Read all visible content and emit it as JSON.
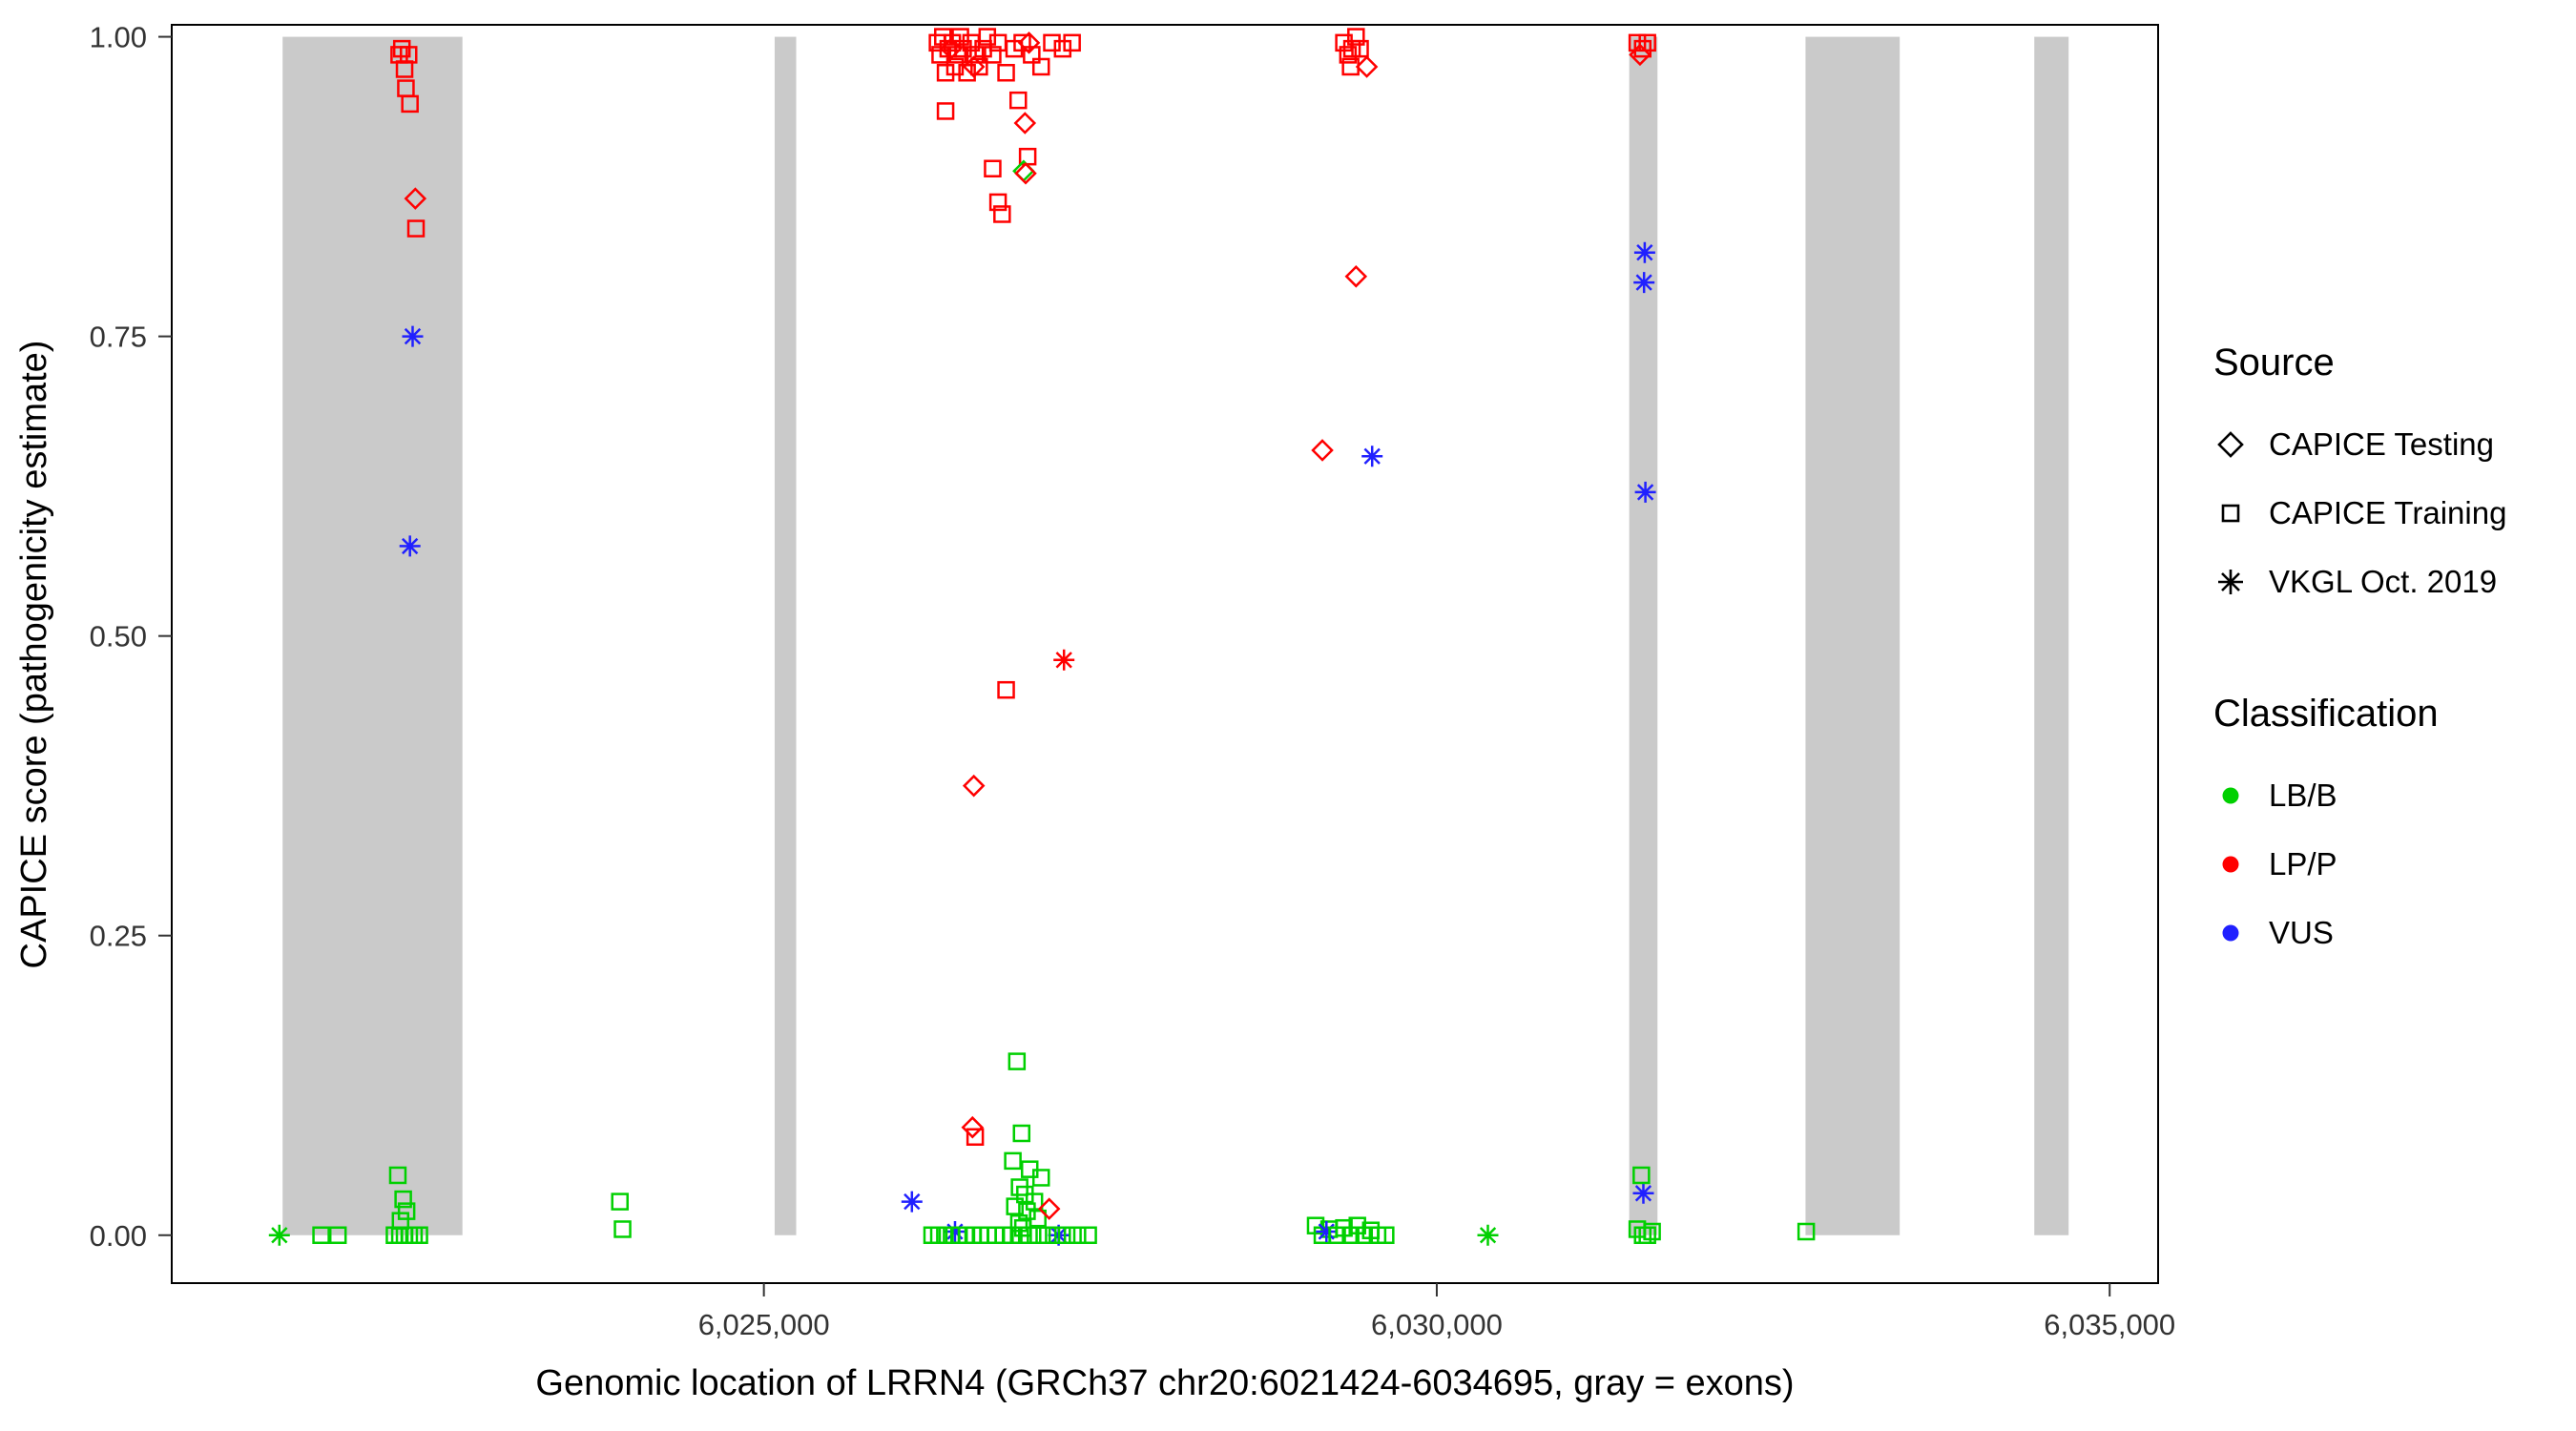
{
  "figure": {
    "xlabel": "Genomic location of LRRN4 (GRCh37 chr20:6021424-6034695, gray = exons)",
    "ylabel": "CAPICE score (pathogenicity estimate)"
  },
  "legend": {
    "source_title": "Source",
    "source_items": [
      {
        "label": "CAPICE Testing",
        "shape": "diamond"
      },
      {
        "label": "CAPICE Training",
        "shape": "square"
      },
      {
        "label": "VKGL Oct. 2019",
        "shape": "asterisk"
      }
    ],
    "classification_title": "Classification",
    "classification_items": [
      {
        "label": "LB/B",
        "color": "#00D000"
      },
      {
        "label": "LP/P",
        "color": "#FF0000"
      },
      {
        "label": "VUS",
        "color": "#2020FF"
      }
    ]
  },
  "chart_data": {
    "type": "scatter",
    "title": "",
    "xlabel": "Genomic location of LRRN4 (GRCh37 chr20:6021424-6034695, gray = exons)",
    "ylabel": "CAPICE score (pathogenicity estimate)",
    "xlim": [
      6020600,
      6035360
    ],
    "ylim": [
      -0.04,
      1.01
    ],
    "grid": false,
    "legend_position": "right",
    "exon_color": "#CACACA",
    "x_ticks": [
      {
        "value": 6025000,
        "label": "6,025,000"
      },
      {
        "value": 6030000,
        "label": "6,030,000"
      },
      {
        "value": 6035000,
        "label": "6,035,000"
      }
    ],
    "y_ticks": [
      {
        "value": 0.0,
        "label": "0.00"
      },
      {
        "value": 0.25,
        "label": "0.25"
      },
      {
        "value": 0.5,
        "label": "0.50"
      },
      {
        "value": 0.75,
        "label": "0.75"
      },
      {
        "value": 1.0,
        "label": "1.00"
      }
    ],
    "exons": [
      [
        6021424,
        6022760
      ],
      [
        6025080,
        6025240
      ],
      [
        6031430,
        6031640
      ],
      [
        6032740,
        6033440
      ],
      [
        6034440,
        6034695
      ]
    ],
    "class_colors": {
      "LB/B": "#00D000",
      "LP/P": "#FF0000",
      "VUS": "#2020FF"
    },
    "shape_by_source": {
      "testing": "diamond",
      "training": "square",
      "vkgl": "asterisk"
    },
    "points": [
      {
        "x": 6021400,
        "y": 0,
        "src": "vkgl",
        "cls": "LB/B"
      },
      {
        "x": 6021710,
        "y": 0,
        "src": "training",
        "cls": "LB/B"
      },
      {
        "x": 6021835,
        "y": 0,
        "src": "training",
        "cls": "LB/B"
      },
      {
        "x": 6022290,
        "y": 0.985,
        "src": "training",
        "cls": "LP/P"
      },
      {
        "x": 6022310,
        "y": 0.99,
        "src": "training",
        "cls": "LP/P"
      },
      {
        "x": 6022360,
        "y": 0.985,
        "src": "training",
        "cls": "LP/P"
      },
      {
        "x": 6022330,
        "y": 0.973,
        "src": "training",
        "cls": "LP/P"
      },
      {
        "x": 6022340,
        "y": 0.957,
        "src": "training",
        "cls": "LP/P"
      },
      {
        "x": 6022370,
        "y": 0.944,
        "src": "training",
        "cls": "LP/P"
      },
      {
        "x": 6022410,
        "y": 0.865,
        "src": "testing",
        "cls": "LP/P"
      },
      {
        "x": 6022415,
        "y": 0.84,
        "src": "training",
        "cls": "LP/P"
      },
      {
        "x": 6022390,
        "y": 0.75,
        "src": "vkgl",
        "cls": "VUS"
      },
      {
        "x": 6022370,
        "y": 0.575,
        "src": "vkgl",
        "cls": "VUS"
      },
      {
        "x": 6022280,
        "y": 0.05,
        "src": "training",
        "cls": "LB/B"
      },
      {
        "x": 6022320,
        "y": 0.03,
        "src": "training",
        "cls": "LB/B"
      },
      {
        "x": 6022345,
        "y": 0.02,
        "src": "training",
        "cls": "LB/B"
      },
      {
        "x": 6022300,
        "y": 0.012,
        "src": "training",
        "cls": "LB/B"
      },
      {
        "x": 6022255,
        "y": 0,
        "src": "training",
        "cls": "LB/B"
      },
      {
        "x": 6022295,
        "y": 0,
        "src": "training",
        "cls": "LB/B"
      },
      {
        "x": 6022330,
        "y": 0,
        "src": "training",
        "cls": "LB/B"
      },
      {
        "x": 6022365,
        "y": 0,
        "src": "training",
        "cls": "LB/B"
      },
      {
        "x": 6022400,
        "y": 0,
        "src": "training",
        "cls": "LB/B"
      },
      {
        "x": 6022440,
        "y": 0,
        "src": "training",
        "cls": "LB/B"
      },
      {
        "x": 6023930,
        "y": 0.028,
        "src": "training",
        "cls": "LB/B"
      },
      {
        "x": 6023950,
        "y": 0.005,
        "src": "training",
        "cls": "LB/B"
      },
      {
        "x": 6026100,
        "y": 0.028,
        "src": "vkgl",
        "cls": "VUS"
      },
      {
        "x": 6026290,
        "y": 0.995,
        "src": "training",
        "cls": "LP/P"
      },
      {
        "x": 6026310,
        "y": 0.985,
        "src": "training",
        "cls": "LP/P"
      },
      {
        "x": 6026330,
        "y": 1.0,
        "src": "training",
        "cls": "LP/P"
      },
      {
        "x": 6026350,
        "y": 0.97,
        "src": "training",
        "cls": "LP/P"
      },
      {
        "x": 6026370,
        "y": 0.99,
        "src": "training",
        "cls": "LP/P"
      },
      {
        "x": 6026400,
        "y": 0.995,
        "src": "training",
        "cls": "LP/P"
      },
      {
        "x": 6026420,
        "y": 0.975,
        "src": "training",
        "cls": "LP/P"
      },
      {
        "x": 6026440,
        "y": 0.985,
        "src": "training",
        "cls": "LP/P"
      },
      {
        "x": 6026460,
        "y": 1.0,
        "src": "training",
        "cls": "LP/P"
      },
      {
        "x": 6026480,
        "y": 0.99,
        "src": "training",
        "cls": "LP/P"
      },
      {
        "x": 6026510,
        "y": 0.97,
        "src": "training",
        "cls": "LP/P"
      },
      {
        "x": 6026540,
        "y": 0.995,
        "src": "training",
        "cls": "LP/P"
      },
      {
        "x": 6026570,
        "y": 0.985,
        "src": "training",
        "cls": "LP/P"
      },
      {
        "x": 6026600,
        "y": 0.975,
        "src": "training",
        "cls": "LP/P"
      },
      {
        "x": 6026630,
        "y": 0.99,
        "src": "training",
        "cls": "LP/P"
      },
      {
        "x": 6026660,
        "y": 1.0,
        "src": "training",
        "cls": "LP/P"
      },
      {
        "x": 6026700,
        "y": 0.985,
        "src": "training",
        "cls": "LP/P"
      },
      {
        "x": 6026740,
        "y": 0.995,
        "src": "training",
        "cls": "LP/P"
      },
      {
        "x": 6026800,
        "y": 0.97,
        "src": "training",
        "cls": "LP/P"
      },
      {
        "x": 6026860,
        "y": 0.99,
        "src": "training",
        "cls": "LP/P"
      },
      {
        "x": 6026920,
        "y": 0.995,
        "src": "training",
        "cls": "LP/P"
      },
      {
        "x": 6026990,
        "y": 0.985,
        "src": "training",
        "cls": "LP/P"
      },
      {
        "x": 6027060,
        "y": 0.975,
        "src": "training",
        "cls": "LP/P"
      },
      {
        "x": 6027140,
        "y": 0.995,
        "src": "training",
        "cls": "LP/P"
      },
      {
        "x": 6027220,
        "y": 0.99,
        "src": "training",
        "cls": "LP/P"
      },
      {
        "x": 6027290,
        "y": 0.995,
        "src": "training",
        "cls": "LP/P"
      },
      {
        "x": 6026390,
        "y": 0.99,
        "src": "testing",
        "cls": "LP/P"
      },
      {
        "x": 6026560,
        "y": 0.975,
        "src": "testing",
        "cls": "LP/P"
      },
      {
        "x": 6026970,
        "y": 0.995,
        "src": "testing",
        "cls": "LP/P"
      },
      {
        "x": 6026350,
        "y": 0.938,
        "src": "training",
        "cls": "LP/P"
      },
      {
        "x": 6026890,
        "y": 0.947,
        "src": "training",
        "cls": "LP/P"
      },
      {
        "x": 6026940,
        "y": 0.928,
        "src": "testing",
        "cls": "LP/P"
      },
      {
        "x": 6026960,
        "y": 0.9,
        "src": "training",
        "cls": "LP/P"
      },
      {
        "x": 6026700,
        "y": 0.89,
        "src": "training",
        "cls": "LP/P"
      },
      {
        "x": 6026930,
        "y": 0.888,
        "src": "testing",
        "cls": "LB/B"
      },
      {
        "x": 6026945,
        "y": 0.886,
        "src": "testing",
        "cls": "LP/P"
      },
      {
        "x": 6026740,
        "y": 0.862,
        "src": "training",
        "cls": "LP/P"
      },
      {
        "x": 6026770,
        "y": 0.852,
        "src": "training",
        "cls": "LP/P"
      },
      {
        "x": 6026800,
        "y": 0.455,
        "src": "training",
        "cls": "LP/P"
      },
      {
        "x": 6027230,
        "y": 0.48,
        "src": "vkgl",
        "cls": "LP/P"
      },
      {
        "x": 6026560,
        "y": 0.375,
        "src": "testing",
        "cls": "LP/P"
      },
      {
        "x": 6026550,
        "y": 0.09,
        "src": "testing",
        "cls": "LP/P"
      },
      {
        "x": 6026570,
        "y": 0.082,
        "src": "training",
        "cls": "LP/P"
      },
      {
        "x": 6026880,
        "y": 0.145,
        "src": "training",
        "cls": "LB/B"
      },
      {
        "x": 6026915,
        "y": 0.085,
        "src": "training",
        "cls": "LB/B"
      },
      {
        "x": 6026850,
        "y": 0.062,
        "src": "training",
        "cls": "LB/B"
      },
      {
        "x": 6026975,
        "y": 0.055,
        "src": "training",
        "cls": "LB/B"
      },
      {
        "x": 6027060,
        "y": 0.048,
        "src": "training",
        "cls": "LB/B"
      },
      {
        "x": 6026900,
        "y": 0.04,
        "src": "training",
        "cls": "LB/B"
      },
      {
        "x": 6026940,
        "y": 0.034,
        "src": "training",
        "cls": "LB/B"
      },
      {
        "x": 6027010,
        "y": 0.028,
        "src": "training",
        "cls": "LB/B"
      },
      {
        "x": 6026865,
        "y": 0.024,
        "src": "training",
        "cls": "LB/B"
      },
      {
        "x": 6026955,
        "y": 0.02,
        "src": "training",
        "cls": "LB/B"
      },
      {
        "x": 6027035,
        "y": 0.014,
        "src": "training",
        "cls": "LB/B"
      },
      {
        "x": 6026895,
        "y": 0.01,
        "src": "training",
        "cls": "LB/B"
      },
      {
        "x": 6026925,
        "y": 0.006,
        "src": "training",
        "cls": "LB/B"
      },
      {
        "x": 6027120,
        "y": 0.022,
        "src": "testing",
        "cls": "LP/P"
      },
      {
        "x": 6026420,
        "y": 0.003,
        "src": "vkgl",
        "cls": "VUS"
      },
      {
        "x": 6027190,
        "y": 0,
        "src": "vkgl",
        "cls": "VUS"
      },
      {
        "x": 6026250,
        "y": 0,
        "src": "training",
        "cls": "LB/B"
      },
      {
        "x": 6026300,
        "y": 0,
        "src": "training",
        "cls": "LB/B"
      },
      {
        "x": 6026345,
        "y": 0,
        "src": "training",
        "cls": "LB/B"
      },
      {
        "x": 6026395,
        "y": 0,
        "src": "training",
        "cls": "LB/B"
      },
      {
        "x": 6026450,
        "y": 0,
        "src": "training",
        "cls": "LB/B"
      },
      {
        "x": 6026505,
        "y": 0,
        "src": "training",
        "cls": "LB/B"
      },
      {
        "x": 6026555,
        "y": 0,
        "src": "training",
        "cls": "LB/B"
      },
      {
        "x": 6026610,
        "y": 0,
        "src": "training",
        "cls": "LB/B"
      },
      {
        "x": 6026665,
        "y": 0,
        "src": "training",
        "cls": "LB/B"
      },
      {
        "x": 6026720,
        "y": 0,
        "src": "training",
        "cls": "LB/B"
      },
      {
        "x": 6026780,
        "y": 0,
        "src": "training",
        "cls": "LB/B"
      },
      {
        "x": 6026840,
        "y": 0,
        "src": "training",
        "cls": "LB/B"
      },
      {
        "x": 6026905,
        "y": 0,
        "src": "training",
        "cls": "LB/B"
      },
      {
        "x": 6026970,
        "y": 0,
        "src": "training",
        "cls": "LB/B"
      },
      {
        "x": 6027040,
        "y": 0,
        "src": "training",
        "cls": "LB/B"
      },
      {
        "x": 6027110,
        "y": 0,
        "src": "training",
        "cls": "LB/B"
      },
      {
        "x": 6027180,
        "y": 0,
        "src": "training",
        "cls": "LB/B"
      },
      {
        "x": 6027250,
        "y": 0,
        "src": "training",
        "cls": "LB/B"
      },
      {
        "x": 6027330,
        "y": 0,
        "src": "training",
        "cls": "LB/B"
      },
      {
        "x": 6027410,
        "y": 0,
        "src": "training",
        "cls": "LB/B"
      },
      {
        "x": 6029310,
        "y": 0.995,
        "src": "training",
        "cls": "LP/P"
      },
      {
        "x": 6029340,
        "y": 0.985,
        "src": "training",
        "cls": "LP/P"
      },
      {
        "x": 6029370,
        "y": 0.99,
        "src": "training",
        "cls": "LP/P"
      },
      {
        "x": 6029400,
        "y": 1.0,
        "src": "training",
        "cls": "LP/P"
      },
      {
        "x": 6029430,
        "y": 0.99,
        "src": "training",
        "cls": "LP/P"
      },
      {
        "x": 6029360,
        "y": 0.975,
        "src": "training",
        "cls": "LP/P"
      },
      {
        "x": 6029480,
        "y": 0.975,
        "src": "testing",
        "cls": "LP/P"
      },
      {
        "x": 6029400,
        "y": 0.8,
        "src": "testing",
        "cls": "LP/P"
      },
      {
        "x": 6029150,
        "y": 0.655,
        "src": "testing",
        "cls": "LP/P"
      },
      {
        "x": 6029520,
        "y": 0.65,
        "src": "vkgl",
        "cls": "VUS"
      },
      {
        "x": 6029100,
        "y": 0.008,
        "src": "training",
        "cls": "LB/B"
      },
      {
        "x": 6029150,
        "y": 0,
        "src": "training",
        "cls": "LB/B"
      },
      {
        "x": 6029200,
        "y": 0.005,
        "src": "training",
        "cls": "LB/B"
      },
      {
        "x": 6029180,
        "y": 0.003,
        "src": "vkgl",
        "cls": "VUS"
      },
      {
        "x": 6029260,
        "y": 0,
        "src": "training",
        "cls": "LB/B"
      },
      {
        "x": 6029310,
        "y": 0.006,
        "src": "training",
        "cls": "LB/B"
      },
      {
        "x": 6029360,
        "y": 0,
        "src": "training",
        "cls": "LB/B"
      },
      {
        "x": 6029410,
        "y": 0.008,
        "src": "training",
        "cls": "LB/B"
      },
      {
        "x": 6029460,
        "y": 0,
        "src": "training",
        "cls": "LB/B"
      },
      {
        "x": 6029510,
        "y": 0.004,
        "src": "training",
        "cls": "LB/B"
      },
      {
        "x": 6029560,
        "y": 0,
        "src": "training",
        "cls": "LB/B"
      },
      {
        "x": 6029620,
        "y": 0,
        "src": "training",
        "cls": "LB/B"
      },
      {
        "x": 6030380,
        "y": 0,
        "src": "vkgl",
        "cls": "LB/B"
      },
      {
        "x": 6031490,
        "y": 0.995,
        "src": "training",
        "cls": "LP/P"
      },
      {
        "x": 6031530,
        "y": 0.99,
        "src": "training",
        "cls": "LP/P"
      },
      {
        "x": 6031565,
        "y": 0.995,
        "src": "training",
        "cls": "LP/P"
      },
      {
        "x": 6031510,
        "y": 0.985,
        "src": "testing",
        "cls": "LP/P"
      },
      {
        "x": 6031545,
        "y": 0.82,
        "src": "vkgl",
        "cls": "VUS"
      },
      {
        "x": 6031540,
        "y": 0.795,
        "src": "vkgl",
        "cls": "VUS"
      },
      {
        "x": 6031550,
        "y": 0.62,
        "src": "vkgl",
        "cls": "VUS"
      },
      {
        "x": 6031535,
        "y": 0.035,
        "src": "vkgl",
        "cls": "VUS"
      },
      {
        "x": 6031520,
        "y": 0.05,
        "src": "training",
        "cls": "LB/B"
      },
      {
        "x": 6031490,
        "y": 0.005,
        "src": "training",
        "cls": "LB/B"
      },
      {
        "x": 6031530,
        "y": 0,
        "src": "training",
        "cls": "LB/B"
      },
      {
        "x": 6031565,
        "y": 0,
        "src": "training",
        "cls": "LB/B"
      },
      {
        "x": 6031600,
        "y": 0.003,
        "src": "training",
        "cls": "LB/B"
      },
      {
        "x": 6032745,
        "y": 0.003,
        "src": "training",
        "cls": "LB/B"
      }
    ]
  }
}
